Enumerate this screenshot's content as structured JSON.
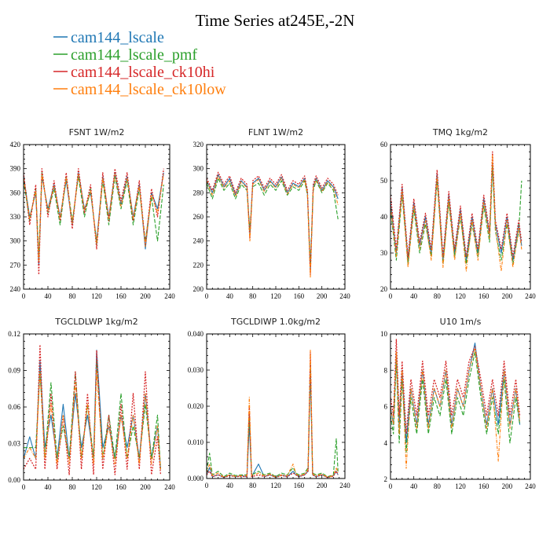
{
  "figure": {
    "title": "Time Series at245E,-2N"
  },
  "colors": {
    "cam144_lscale": "#1f77b4",
    "cam144_lscale_pmf": "#2ca02c",
    "cam144_lscale_ck10hi": "#d62728",
    "cam144_lscale_ck10low": "#ff7f0e"
  },
  "legend": [
    {
      "name": "cam144_lscale",
      "color": "#1f77b4"
    },
    {
      "name": "cam144_lscale_pmf",
      "color": "#2ca02c"
    },
    {
      "name": "cam144_lscale_ck10hi",
      "color": "#d62728"
    },
    {
      "name": "cam144_lscale_ck10low",
      "color": "#ff7f0e"
    }
  ],
  "chart_data": [
    {
      "type": "line",
      "title": "FSNT   1W/m2",
      "xlim": [
        0,
        240
      ],
      "xticks": [
        0,
        40,
        80,
        120,
        160,
        200,
        240
      ],
      "ylim": [
        240,
        420
      ],
      "yticks": [
        "240",
        "270",
        "300",
        "330",
        "360",
        "390",
        "420"
      ],
      "x": [
        0,
        10,
        20,
        25,
        30,
        40,
        50,
        60,
        70,
        80,
        90,
        100,
        110,
        120,
        130,
        140,
        150,
        160,
        170,
        180,
        190,
        200,
        210,
        220,
        230
      ],
      "series": [
        {
          "name": "cam144_lscale",
          "values": [
            380,
            330,
            360,
            270,
            380,
            340,
            370,
            330,
            375,
            320,
            385,
            340,
            360,
            300,
            380,
            330,
            385,
            345,
            380,
            330,
            370,
            290,
            360,
            340,
            385
          ]
        },
        {
          "name": "cam144_lscale_pmf",
          "values": [
            375,
            325,
            365,
            280,
            385,
            335,
            365,
            320,
            380,
            325,
            380,
            330,
            365,
            295,
            375,
            320,
            380,
            340,
            375,
            320,
            365,
            300,
            355,
            300,
            370
          ]
        },
        {
          "name": "cam144_lscale_ck10hi",
          "values": [
            385,
            320,
            370,
            258,
            390,
            330,
            375,
            325,
            385,
            315,
            390,
            335,
            370,
            290,
            385,
            325,
            390,
            350,
            385,
            325,
            375,
            295,
            365,
            330,
            390
          ]
        },
        {
          "name": "cam144_lscale_ck10low",
          "values": [
            378,
            328,
            362,
            275,
            382,
            338,
            368,
            328,
            378,
            322,
            383,
            338,
            362,
            298,
            378,
            328,
            383,
            343,
            378,
            328,
            368,
            293,
            358,
            335,
            383
          ]
        }
      ]
    },
    {
      "type": "line",
      "title": "FLNT   1W/m2",
      "xlim": [
        0,
        240
      ],
      "xticks": [
        0,
        40,
        80,
        120,
        160,
        200,
        240
      ],
      "ylim": [
        200,
        320
      ],
      "yticks": [
        "200",
        "220",
        "240",
        "260",
        "280",
        "300",
        "320"
      ],
      "x": [
        0,
        10,
        20,
        30,
        40,
        50,
        60,
        70,
        75,
        80,
        90,
        100,
        110,
        120,
        130,
        140,
        150,
        160,
        170,
        175,
        180,
        185,
        190,
        200,
        210,
        220,
        228
      ],
      "series": [
        {
          "name": "cam144_lscale",
          "values": [
            290,
            280,
            295,
            285,
            292,
            278,
            290,
            285,
            245,
            288,
            292,
            282,
            290,
            285,
            293,
            280,
            288,
            285,
            292,
            280,
            215,
            285,
            292,
            282,
            290,
            285,
            275
          ]
        },
        {
          "name": "cam144_lscale_pmf",
          "values": [
            288,
            275,
            292,
            282,
            288,
            275,
            287,
            282,
            248,
            285,
            288,
            278,
            287,
            282,
            290,
            278,
            285,
            282,
            290,
            278,
            220,
            282,
            290,
            280,
            288,
            282,
            258
          ]
        },
        {
          "name": "cam144_lscale_ck10hi",
          "values": [
            292,
            282,
            297,
            287,
            294,
            280,
            292,
            287,
            242,
            290,
            294,
            284,
            292,
            287,
            295,
            282,
            290,
            287,
            294,
            282,
            212,
            287,
            294,
            284,
            292,
            287,
            278
          ]
        },
        {
          "name": "cam144_lscale_ck10low",
          "values": [
            290,
            278,
            294,
            284,
            290,
            277,
            289,
            284,
            240,
            287,
            291,
            281,
            289,
            284,
            292,
            279,
            287,
            284,
            291,
            279,
            210,
            284,
            291,
            281,
            289,
            284,
            270
          ]
        }
      ]
    },
    {
      "type": "line",
      "title": "TMQ   1kg/m2",
      "xlim": [
        0,
        240
      ],
      "xticks": [
        0,
        40,
        80,
        120,
        160,
        200,
        240
      ],
      "ylim": [
        20,
        60
      ],
      "yticks": [
        "20",
        "30",
        "40",
        "50",
        "60"
      ],
      "x": [
        0,
        10,
        20,
        30,
        40,
        50,
        60,
        70,
        80,
        90,
        100,
        110,
        120,
        130,
        140,
        150,
        160,
        170,
        175,
        180,
        190,
        200,
        210,
        220,
        225
      ],
      "series": [
        {
          "name": "cam144_lscale",
          "values": [
            44,
            30,
            48,
            28,
            44,
            32,
            40,
            30,
            52,
            28,
            46,
            30,
            42,
            28,
            40,
            30,
            45,
            35,
            55,
            38,
            30,
            40,
            28,
            38,
            32
          ]
        },
        {
          "name": "cam144_lscale_pmf",
          "values": [
            42,
            28,
            46,
            27,
            42,
            30,
            38,
            29,
            50,
            27,
            44,
            29,
            40,
            27,
            38,
            29,
            43,
            33,
            54,
            36,
            28,
            38,
            27,
            36,
            50
          ]
        },
        {
          "name": "cam144_lscale_ck10hi",
          "values": [
            46,
            31,
            49,
            29,
            45,
            33,
            41,
            31,
            53,
            29,
            47,
            31,
            43,
            29,
            41,
            31,
            46,
            36,
            58,
            39,
            31,
            41,
            29,
            39,
            33
          ]
        },
        {
          "name": "cam144_lscale_ck10low",
          "values": [
            43,
            29,
            47,
            26,
            43,
            31,
            39,
            28,
            51,
            26,
            45,
            28,
            41,
            25,
            39,
            28,
            44,
            34,
            57,
            37,
            25,
            39,
            26,
            37,
            31
          ]
        }
      ]
    },
    {
      "type": "line",
      "title": "TGCLDLWP   1kg/m2",
      "xlim": [
        0,
        240
      ],
      "xticks": [
        0,
        40,
        80,
        120,
        160,
        200,
        240
      ],
      "ylim": [
        0,
        0.135
      ],
      "yticks": [
        "0.00",
        "0.03",
        "0.06",
        "0.09",
        "0.12"
      ],
      "x": [
        0,
        10,
        20,
        27,
        35,
        45,
        55,
        65,
        75,
        85,
        95,
        105,
        115,
        120,
        130,
        140,
        150,
        160,
        170,
        180,
        190,
        200,
        210,
        220,
        225
      ],
      "series": [
        {
          "name": "cam144_lscale",
          "values": [
            0.02,
            0.04,
            0.02,
            0.11,
            0.03,
            0.06,
            0.02,
            0.07,
            0.02,
            0.08,
            0.03,
            0.06,
            0.02,
            0.12,
            0.03,
            0.05,
            0.02,
            0.06,
            0.03,
            0.06,
            0.02,
            0.08,
            0.02,
            0.05,
            0.01
          ]
        },
        {
          "name": "cam144_lscale_pmf",
          "values": [
            0.03,
            0.03,
            0.03,
            0.1,
            0.02,
            0.09,
            0.02,
            0.05,
            0.02,
            0.1,
            0.02,
            0.07,
            0.02,
            0.11,
            0.02,
            0.06,
            0.02,
            0.08,
            0.02,
            0.05,
            0.02,
            0.07,
            0.02,
            0.06,
            0.01
          ]
        },
        {
          "name": "cam144_lscale_ck10hi",
          "values": [
            0.01,
            0.02,
            0.01,
            0.125,
            0.01,
            0.08,
            0.01,
            0.06,
            0.005,
            0.1,
            0.01,
            0.08,
            0.005,
            0.12,
            0.01,
            0.06,
            0.005,
            0.07,
            0.01,
            0.08,
            0.01,
            0.1,
            0.005,
            0.04,
            0.005
          ]
        },
        {
          "name": "cam144_lscale_ck10low",
          "values": [
            0.02,
            0.03,
            0.02,
            0.1,
            0.02,
            0.07,
            0.015,
            0.06,
            0.015,
            0.09,
            0.02,
            0.07,
            0.015,
            0.1,
            0.02,
            0.05,
            0.015,
            0.06,
            0.02,
            0.06,
            0.015,
            0.08,
            0.015,
            0.05,
            0.01
          ]
        }
      ]
    },
    {
      "type": "line",
      "title": "TGCLDIWP   1.0kg/m2",
      "xlim": [
        0,
        240
      ],
      "xticks": [
        0,
        40,
        80,
        120,
        160,
        200,
        240
      ],
      "ylim": [
        0,
        0.04
      ],
      "yticks": [
        "0.000",
        "0.010",
        "0.020",
        "0.030",
        "0.040"
      ],
      "x": [
        0,
        5,
        10,
        20,
        30,
        40,
        50,
        60,
        70,
        74,
        78,
        90,
        100,
        110,
        120,
        130,
        140,
        150,
        155,
        160,
        170,
        176,
        180,
        184,
        190,
        200,
        210,
        220,
        225,
        228
      ],
      "series": [
        {
          "name": "cam144_lscale",
          "values": [
            0.001,
            0.003,
            0.0005,
            0.001,
            0.0003,
            0.001,
            0.0005,
            0.0008,
            0.0005,
            0.015,
            0.0005,
            0.004,
            0.0005,
            0.001,
            0.0003,
            0.001,
            0.0005,
            0.002,
            0.001,
            0.0005,
            0.001,
            0.002,
            0.03,
            0.001,
            0.0005,
            0.001,
            0.0003,
            0.0008,
            0.002,
            0.001
          ]
        },
        {
          "name": "cam144_lscale_pmf",
          "values": [
            0.002,
            0.007,
            0.001,
            0.002,
            0.0005,
            0.0015,
            0.0008,
            0.001,
            0.001,
            0.018,
            0.001,
            0.002,
            0.001,
            0.0015,
            0.0005,
            0.0015,
            0.001,
            0.003,
            0.0015,
            0.001,
            0.0015,
            0.003,
            0.032,
            0.0015,
            0.001,
            0.0015,
            0.0005,
            0.001,
            0.011,
            0.002
          ]
        },
        {
          "name": "cam144_lscale_ck10hi",
          "values": [
            0.001,
            0.002,
            0.0005,
            0.001,
            0.0003,
            0.0008,
            0.0005,
            0.0006,
            0.0005,
            0.02,
            0.0005,
            0.001,
            0.0005,
            0.001,
            0.0003,
            0.0008,
            0.0005,
            0.0015,
            0.001,
            0.0005,
            0.001,
            0.002,
            0.035,
            0.001,
            0.0005,
            0.001,
            0.0003,
            0.0006,
            0.002,
            0.001
          ]
        },
        {
          "name": "cam144_lscale_ck10low",
          "values": [
            0.0015,
            0.004,
            0.0008,
            0.0015,
            0.0004,
            0.001,
            0.0006,
            0.0008,
            0.0008,
            0.0225,
            0.0008,
            0.0015,
            0.0008,
            0.0012,
            0.0004,
            0.001,
            0.0008,
            0.004,
            0.0012,
            0.0008,
            0.0012,
            0.0025,
            0.0355,
            0.0012,
            0.0008,
            0.0012,
            0.0004,
            0.0008,
            0.003,
            0.0015
          ]
        }
      ]
    },
    {
      "type": "line",
      "title": "U10   1m/s",
      "xlim": [
        0,
        240
      ],
      "xticks": [
        0,
        40,
        80,
        120,
        160,
        200,
        240
      ],
      "ylim": [
        2,
        10
      ],
      "yticks": [
        "2",
        "4",
        "6",
        "8",
        "10"
      ],
      "x": [
        0,
        5,
        10,
        15,
        20,
        27,
        35,
        45,
        55,
        65,
        75,
        85,
        95,
        105,
        115,
        125,
        135,
        145,
        155,
        165,
        175,
        185,
        195,
        205,
        215,
        222
      ],
      "series": [
        {
          "name": "cam144_lscale",
          "values": [
            6,
            5,
            9,
            5,
            8,
            4,
            7,
            5,
            8,
            5,
            7,
            6,
            8,
            5,
            7,
            6,
            8,
            9.5,
            7,
            5,
            7,
            5,
            8,
            5,
            7,
            5
          ]
        },
        {
          "name": "cam144_lscale_pmf",
          "values": [
            5.5,
            4.5,
            8.5,
            4,
            7.5,
            3.5,
            6.5,
            4.5,
            7.5,
            4.5,
            6.5,
            5.5,
            7.5,
            4.5,
            6.5,
            5.5,
            7.5,
            9,
            6.5,
            4.5,
            6.5,
            4.5,
            7.5,
            4,
            6.5,
            5
          ]
        },
        {
          "name": "cam144_lscale_ck10hi",
          "values": [
            6.5,
            5.5,
            9.7,
            5.5,
            8.5,
            4.5,
            7.5,
            5.5,
            8.5,
            5.5,
            7.5,
            6.5,
            8.5,
            5.5,
            7.5,
            6.5,
            8.5,
            9.3,
            7.5,
            5.5,
            7.5,
            5.5,
            8.5,
            5.5,
            7.5,
            5.5
          ]
        },
        {
          "name": "cam144_lscale_ck10low",
          "values": [
            6,
            5,
            9,
            4.5,
            8,
            2.6,
            7,
            4.8,
            8,
            4.8,
            7,
            6,
            8,
            4.8,
            7,
            6,
            8,
            9.2,
            7,
            4.8,
            7,
            3,
            8,
            4.8,
            7,
            5.2
          ]
        }
      ]
    }
  ]
}
